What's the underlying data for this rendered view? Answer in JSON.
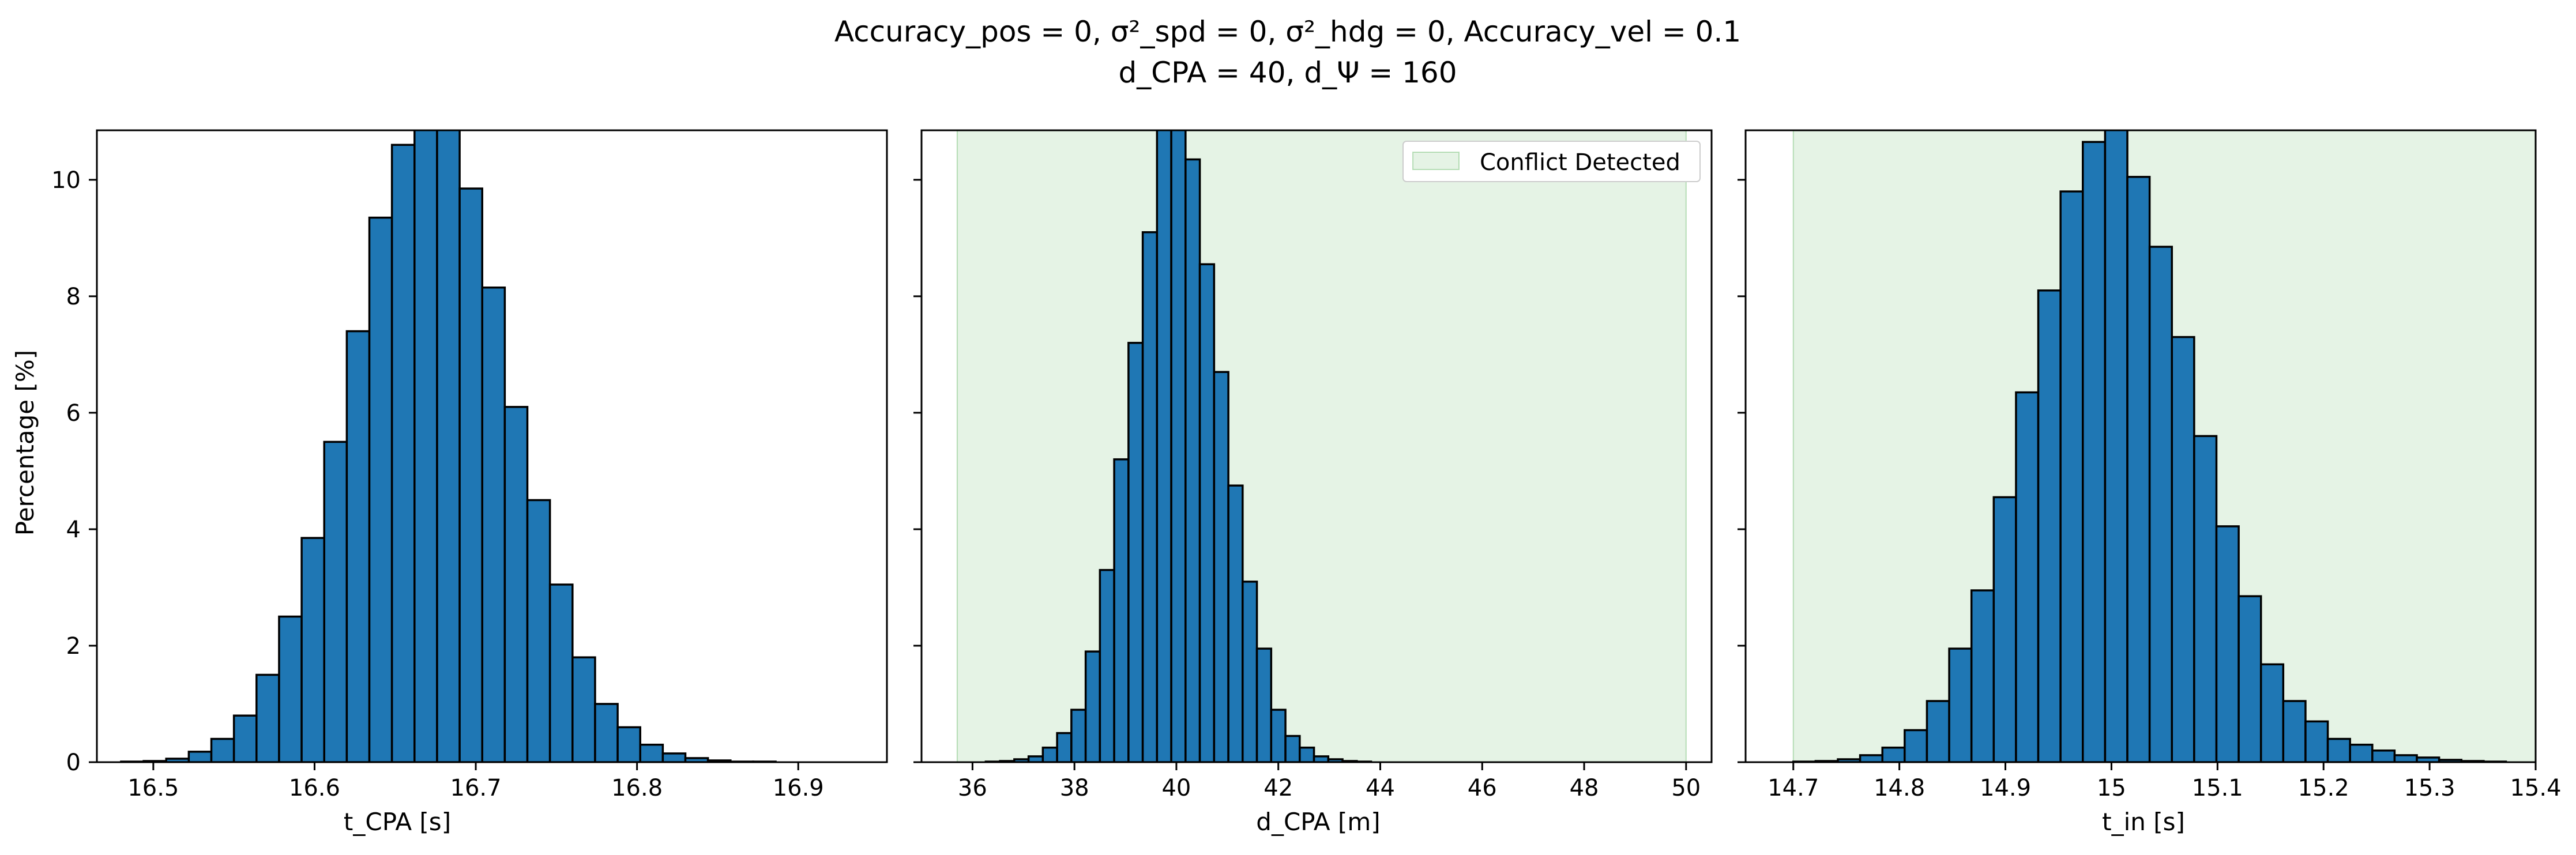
{
  "figure": {
    "title_line1": "Accuracy_pos = 0, σ²_spd = 0, σ²_hdg = 0, Accuracy_vel = 0.1",
    "title_line2": "d_CPA = 40, d_Ψ = 160"
  },
  "chart_data": [
    {
      "type": "bar",
      "panel": "left",
      "xlabel": "t_CPA [s]",
      "ylabel": "Percentage [%]",
      "xlim": [
        16.465,
        16.955
      ],
      "ylim": [
        0,
        10.85
      ],
      "xticks": [
        16.5,
        16.6,
        16.7,
        16.8,
        16.9
      ],
      "yticks": [
        0,
        2,
        4,
        6,
        8,
        10
      ],
      "bin_edges": [
        16.48,
        16.494,
        16.508,
        16.522,
        16.536,
        16.55,
        16.564,
        16.578,
        16.592,
        16.606,
        16.62,
        16.634,
        16.648,
        16.662,
        16.676,
        16.69,
        16.704,
        16.718,
        16.732,
        16.746,
        16.76,
        16.774,
        16.788,
        16.802,
        16.816,
        16.83,
        16.844,
        16.858,
        16.872,
        16.886,
        16.9,
        16.914,
        16.928,
        16.942
      ],
      "values": [
        0.01,
        0.02,
        0.06,
        0.18,
        0.4,
        0.8,
        1.5,
        2.5,
        3.85,
        5.5,
        7.4,
        9.35,
        10.6,
        10.9,
        10.9,
        9.85,
        8.15,
        6.1,
        4.5,
        3.05,
        1.8,
        1.0,
        0.6,
        0.3,
        0.15,
        0.07,
        0.03,
        0.01,
        0.01,
        0.0,
        0.0,
        0.0,
        0.0
      ],
      "legend": null,
      "grid": false
    },
    {
      "type": "bar",
      "panel": "middle",
      "xlabel": "d_CPA [m]",
      "ylabel": "",
      "xlim": [
        35.0,
        50.5
      ],
      "ylim": [
        0,
        10.85
      ],
      "xticks": [
        36,
        38,
        40,
        42,
        44,
        46,
        48,
        50
      ],
      "shaded_region": {
        "x": [
          35.7,
          50.0
        ],
        "label": "Conflict Detected",
        "color": "#2ca02c",
        "alpha": 0.12
      },
      "bin_edges": [
        35.7,
        35.98,
        36.26,
        36.54,
        36.82,
        37.1,
        37.38,
        37.66,
        37.94,
        38.22,
        38.5,
        38.78,
        39.06,
        39.34,
        39.62,
        39.9,
        40.18,
        40.46,
        40.74,
        41.02,
        41.3,
        41.58,
        41.86,
        42.14,
        42.42,
        42.7,
        42.98,
        43.26,
        43.54,
        43.82,
        44.1,
        44.38
      ],
      "values": [
        0.0,
        0.0,
        0.01,
        0.02,
        0.05,
        0.1,
        0.25,
        0.5,
        0.9,
        1.9,
        3.3,
        5.2,
        7.2,
        9.1,
        10.9,
        10.9,
        10.35,
        8.55,
        6.7,
        4.75,
        3.1,
        1.95,
        0.9,
        0.45,
        0.25,
        0.1,
        0.05,
        0.02,
        0.01,
        0.0,
        0.0
      ],
      "legend": {
        "label": "Conflict Detected",
        "position": "top-right"
      },
      "grid": false
    },
    {
      "type": "bar",
      "panel": "right",
      "xlabel": "t_in [s]",
      "ylabel": "",
      "xlim": [
        14.655,
        15.4
      ],
      "ylim": [
        0,
        10.85
      ],
      "xticks": [
        14.7,
        14.8,
        14.9,
        15.0,
        15.1,
        15.2,
        15.3,
        15.4
      ],
      "shaded_region": {
        "x": [
          14.7,
          15.4
        ],
        "label": "Conflict Detected",
        "color": "#2ca02c",
        "alpha": 0.12
      },
      "bin_edges": [
        14.7,
        14.721,
        14.742,
        14.763,
        14.784,
        14.805,
        14.826,
        14.847,
        14.868,
        14.889,
        14.91,
        14.931,
        14.952,
        14.973,
        14.994,
        15.015,
        15.036,
        15.057,
        15.078,
        15.099,
        15.12,
        15.141,
        15.162,
        15.183,
        15.204,
        15.225,
        15.246,
        15.267,
        15.288,
        15.309,
        15.33,
        15.351,
        15.372
      ],
      "values": [
        0.01,
        0.02,
        0.05,
        0.12,
        0.25,
        0.55,
        1.05,
        1.95,
        2.95,
        4.55,
        6.35,
        8.1,
        9.8,
        10.65,
        10.9,
        10.05,
        8.85,
        7.3,
        5.6,
        4.05,
        2.85,
        1.68,
        1.05,
        0.7,
        0.4,
        0.3,
        0.2,
        0.12,
        0.08,
        0.04,
        0.02,
        0.01
      ],
      "legend": null,
      "grid": false
    }
  ],
  "style": {
    "bar_color": "#1f77b4",
    "bar_edge": "#000000",
    "shade_color": "#2ca02c"
  }
}
